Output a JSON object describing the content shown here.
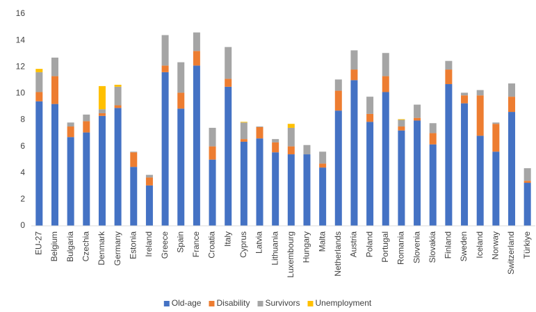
{
  "chart_data": {
    "type": "bar",
    "stacked": true,
    "categories": [
      "EU-27",
      "Belgium",
      "Bulgaria",
      "Czechia",
      "Denmark",
      "Germany",
      "Estonia",
      "Ireland",
      "Greece",
      "Spain",
      "France",
      "Croatia",
      "Italy",
      "Cyprus",
      "Latvia",
      "Lithuania",
      "Luxembourg",
      "Hungary",
      "Malta",
      "Netherlands",
      "Austria",
      "Poland",
      "Portugal",
      "Romania",
      "Slovenia",
      "Slovakia",
      "Finland",
      "Sweden",
      "Iceland",
      "Norway",
      "Switzerland",
      "Türkiye"
    ],
    "series": [
      {
        "name": "Old-age",
        "color": "#4472c4",
        "values": [
          9.4,
          9.2,
          6.7,
          7.05,
          8.3,
          8.9,
          4.45,
          3.05,
          11.6,
          8.85,
          12.1,
          5.0,
          10.5,
          6.35,
          6.6,
          5.55,
          5.4,
          5.4,
          4.4,
          8.7,
          11.0,
          7.85,
          10.1,
          7.2,
          7.95,
          6.15,
          10.7,
          9.25,
          6.8,
          5.6,
          8.6,
          3.25
        ]
      },
      {
        "name": "Disability",
        "color": "#ed7d31",
        "values": [
          0.7,
          2.1,
          0.8,
          0.85,
          0.2,
          0.2,
          1.1,
          0.6,
          0.5,
          1.2,
          1.1,
          1.0,
          0.6,
          0.2,
          0.85,
          0.75,
          0.6,
          0,
          0.3,
          1.5,
          0.8,
          0.6,
          1.2,
          0.3,
          0.2,
          0.85,
          1.1,
          0.6,
          3.05,
          2.1,
          1.15,
          0.15
        ]
      },
      {
        "name": "Survivors",
        "color": "#a5a5a5",
        "values": [
          1.5,
          1.4,
          0.3,
          0.5,
          0.3,
          1.4,
          0.05,
          0.2,
          2.3,
          2.3,
          1.4,
          1.4,
          2.4,
          1.25,
          0.05,
          0.25,
          1.4,
          0.7,
          0.9,
          0.85,
          1.45,
          1.3,
          1.75,
          0.5,
          1.0,
          0.75,
          0.65,
          0.2,
          0.4,
          0.1,
          1.0,
          0.95
        ]
      },
      {
        "name": "Unemployment",
        "color": "#ffc000",
        "values": [
          0.25,
          0,
          0,
          0,
          1.75,
          0.15,
          0,
          0,
          0,
          0,
          0,
          0,
          0,
          0.05,
          0,
          0,
          0.3,
          0,
          0,
          0,
          0,
          0,
          0,
          0.05,
          0,
          0,
          0,
          0,
          0,
          0,
          0,
          0
        ]
      }
    ],
    "ylim": [
      0,
      16
    ],
    "yticks": [
      0,
      2,
      4,
      6,
      8,
      10,
      12,
      14,
      16
    ],
    "legend": "bottom"
  }
}
